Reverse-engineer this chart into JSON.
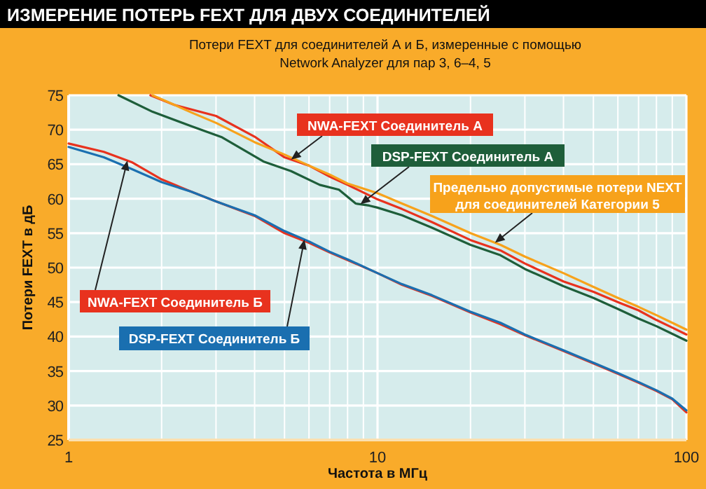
{
  "chart_data": {
    "type": "line",
    "title": "ИЗМЕРЕНИЕ ПОТЕРЬ FEXT ДЛЯ ДВУХ СОЕДИНИТЕЛЕЙ",
    "subtitle": "Потери FEXT для соединителей А и Б, измеренные с помощью\nNetwork Analyzer для пар  3, 6–4, 5",
    "xlabel": "Частота в МГц",
    "ylabel": "Потери FEXT в дБ",
    "log": "x",
    "xlim": [
      1,
      100
    ],
    "ylim": [
      25,
      75
    ],
    "xticks": [
      1,
      {
        "value": 2,
        "label": null
      },
      {
        "value": 3,
        "label": null
      },
      {
        "value": 4,
        "label": null
      },
      {
        "value": 5,
        "label": null
      },
      {
        "value": 6,
        "label": null
      },
      {
        "value": 7,
        "label": null
      },
      {
        "value": 8,
        "label": null
      },
      {
        "value": 9,
        "label": null
      },
      10,
      {
        "value": 20,
        "label": null
      },
      {
        "value": 30,
        "label": null
      },
      {
        "value": 40,
        "label": null
      },
      {
        "value": 50,
        "label": null
      },
      {
        "value": 60,
        "label": null
      },
      {
        "value": 70,
        "label": null
      },
      {
        "value": 80,
        "label": null
      },
      {
        "value": 90,
        "label": null
      },
      100
    ],
    "yticks": [
      25,
      30,
      35,
      40,
      45,
      50,
      55,
      60,
      65,
      70,
      75
    ],
    "grid": true,
    "line_style": "solid",
    "series": [
      {
        "name": "NWA-FEXT Соединитель А",
        "color": "#e8321e",
        "x": [
          1.84,
          2.2,
          3,
          4,
          5,
          6,
          7,
          8,
          10,
          12,
          15,
          20,
          25,
          30,
          40,
          50,
          60,
          70,
          80,
          90,
          100
        ],
        "values": [
          75,
          73.6,
          72,
          69,
          66,
          64.8,
          63.2,
          62,
          59.9,
          58.5,
          56.6,
          54,
          52.5,
          50.6,
          48,
          46.5,
          45,
          43.8,
          42.4,
          41.3,
          40.3
        ]
      },
      {
        "name": "DSP-FEXT Соединитель А",
        "color": "#1e5e3a",
        "x": [
          1.45,
          1.87,
          2.5,
          3.14,
          4.27,
          5.25,
          6.5,
          7.5,
          8.5,
          9.4,
          10,
          12,
          15,
          20,
          25,
          30,
          40,
          50,
          60,
          70,
          80,
          90,
          100
        ],
        "values": [
          75,
          72.6,
          70.5,
          68.9,
          65.4,
          64,
          62,
          61.3,
          59.3,
          59,
          58.7,
          57.6,
          55.8,
          53.3,
          51.8,
          49.8,
          47.3,
          45.6,
          44,
          42.6,
          41.5,
          40.4,
          39.4
        ]
      },
      {
        "name": "Предельно допустимые потери NEXT\nдля соединителей Категории 5",
        "color": "#f7a21b",
        "x": [
          1.87,
          2.5,
          3,
          4,
          5,
          6,
          7,
          8,
          10,
          12,
          15,
          20,
          25,
          30,
          40,
          50,
          60,
          70,
          80,
          90,
          100
        ],
        "values": [
          75,
          72.5,
          71,
          68.2,
          66.4,
          64.8,
          63.5,
          62.2,
          60.8,
          59.3,
          57.5,
          55,
          53.3,
          51.6,
          49.2,
          47.2,
          45.6,
          44.3,
          43.1,
          42,
          41
        ]
      },
      {
        "name": "NWA-FEXT Соединитель Б",
        "color": "#e8321e",
        "x": [
          1,
          1.3,
          1.6,
          2,
          2.5,
          3,
          4,
          5,
          6,
          7,
          8,
          10,
          12,
          15,
          20,
          25,
          30,
          40,
          50,
          60,
          70,
          80,
          90,
          100
        ],
        "values": [
          68,
          66.8,
          65.3,
          62.8,
          61,
          59.6,
          57.5,
          55,
          53.6,
          52.2,
          51.1,
          49.2,
          47.5,
          45.9,
          43.5,
          41.8,
          40.2,
          37.9,
          36.1,
          34.6,
          33.3,
          32.1,
          30.9,
          29
        ]
      },
      {
        "name": "DSP-FEXT Соединитель Б",
        "color": "#1a6fb0",
        "x": [
          1,
          1.3,
          1.6,
          2,
          2.5,
          3,
          4,
          5,
          6,
          7,
          8,
          10,
          12,
          15,
          20,
          25,
          30,
          40,
          50,
          60,
          70,
          80,
          90,
          100
        ],
        "values": [
          67.5,
          66,
          64.3,
          62.4,
          61,
          59.6,
          57.6,
          55.3,
          53.8,
          52.3,
          51.2,
          49.2,
          47.6,
          46,
          43.6,
          42,
          40.3,
          38,
          36.2,
          34.7,
          33.4,
          32.2,
          31,
          29.3
        ]
      }
    ]
  }
}
